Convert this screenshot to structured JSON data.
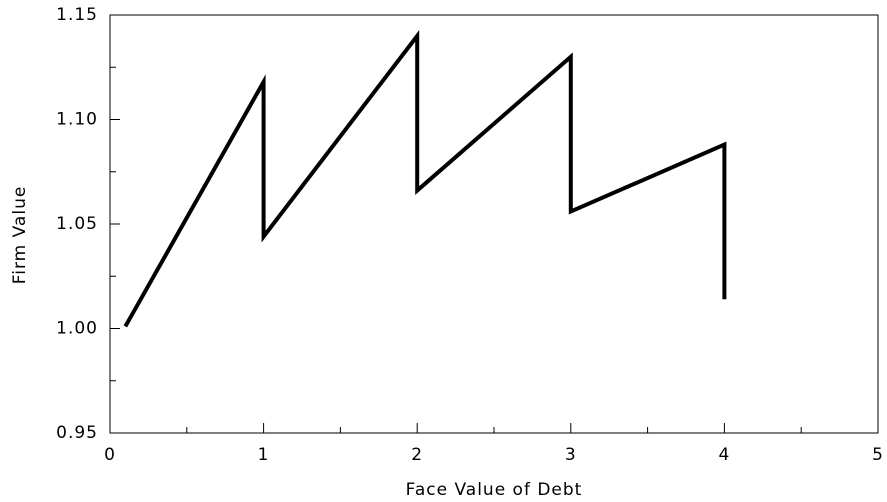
{
  "chart_data": {
    "type": "line",
    "xlabel": "Face Value of Debt",
    "ylabel": "Firm Value",
    "x": [
      0.1,
      1,
      1,
      2,
      2,
      3,
      3,
      4,
      4
    ],
    "series": [
      {
        "color": "#000000",
        "values": [
          1.001,
          1.118,
          1.044,
          1.14,
          1.066,
          1.13,
          1.056,
          1.088,
          1.014
        ]
      }
    ],
    "xlim": [
      0,
      5
    ],
    "xticks": [
      0,
      1,
      2,
      3,
      4,
      5
    ],
    "xminorticks": [
      0.5,
      1.5,
      2.5,
      3.5,
      4.5
    ],
    "ylim": [
      0.95,
      1.15
    ],
    "yticks": [
      0.95,
      {
        "value": 1.0,
        "label": "1.00"
      },
      1.05,
      {
        "value": 1.1,
        "label": "1.10"
      },
      1.15
    ],
    "yminorticks": [
      0.975,
      1.025,
      1.075,
      1.125
    ]
  }
}
